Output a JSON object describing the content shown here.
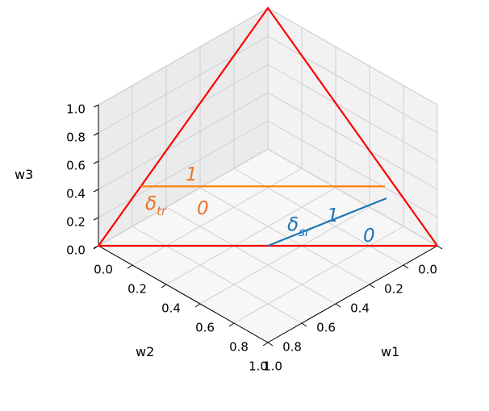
{
  "chart_data": {
    "type": "line",
    "projection": "3d",
    "title": "",
    "axes": {
      "x": {
        "label": "w1",
        "ticks": [
          "0.0",
          "0.2",
          "0.4",
          "0.6",
          "0.8",
          "1.0"
        ],
        "lim": [
          0,
          1
        ]
      },
      "y": {
        "label": "w2",
        "ticks": [
          "0.0",
          "0.2",
          "0.4",
          "0.6",
          "0.8",
          "1.0"
        ],
        "lim": [
          0,
          1
        ]
      },
      "z": {
        "label": "w3",
        "ticks": [
          "0.0",
          "0.2",
          "0.4",
          "0.6",
          "0.8",
          "1.0"
        ],
        "lim": [
          0,
          1
        ]
      }
    },
    "grid": true,
    "series": [
      {
        "color": "#ff0000",
        "points": [
          [
            1,
            0,
            0
          ],
          [
            0,
            1,
            0
          ],
          [
            0,
            0,
            1
          ],
          [
            1,
            0,
            0
          ]
        ]
      },
      {
        "color": "#ff7f0e",
        "points": [
          [
            0,
            0.75,
            0.25
          ],
          [
            0.72,
            0.03,
            0.25
          ]
        ]
      },
      {
        "color": "#1f77b4",
        "points": [
          [
            0.5,
            0.5,
            0
          ],
          [
            0.75,
            0.05,
            0.2
          ]
        ]
      }
    ],
    "annotations": [
      {
        "id": "dtr",
        "base": "δ",
        "sub": "tr",
        "color": "#e8752a"
      },
      {
        "id": "dtr_1",
        "text": "1",
        "color": "#e8752a"
      },
      {
        "id": "dtr_0",
        "text": "0",
        "color": "#e8752a"
      },
      {
        "id": "dsr",
        "base": "δ",
        "sub": "sr",
        "color": "#1f77b4"
      },
      {
        "id": "dsr_1",
        "text": "1",
        "color": "#1f77b4"
      },
      {
        "id": "dsr_0",
        "text": "0",
        "color": "#1f77b4"
      }
    ]
  }
}
